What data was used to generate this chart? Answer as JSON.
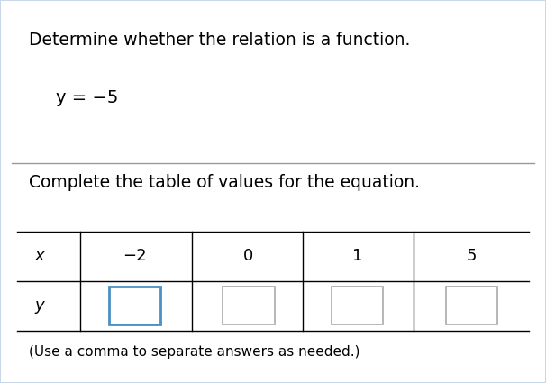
{
  "title": "Determine whether the relation is a function.",
  "equation": "y = −5",
  "section2_title": "Complete the table of values for the equation.",
  "note": "(Use a comma to separate answers as needed.)",
  "x_label": "x",
  "y_label": "y",
  "x_values": [
    "−2",
    "0",
    "1",
    "5"
  ],
  "bg_color": "#c8d8e8",
  "card_color": "#ffffff",
  "box_border_color_active": "#4a90c4",
  "box_border_color_inactive": "#aaaaaa",
  "divider_color": "#999999",
  "title_fontsize": 13.5,
  "eq_fontsize": 14,
  "table_fontsize": 13,
  "note_fontsize": 11
}
